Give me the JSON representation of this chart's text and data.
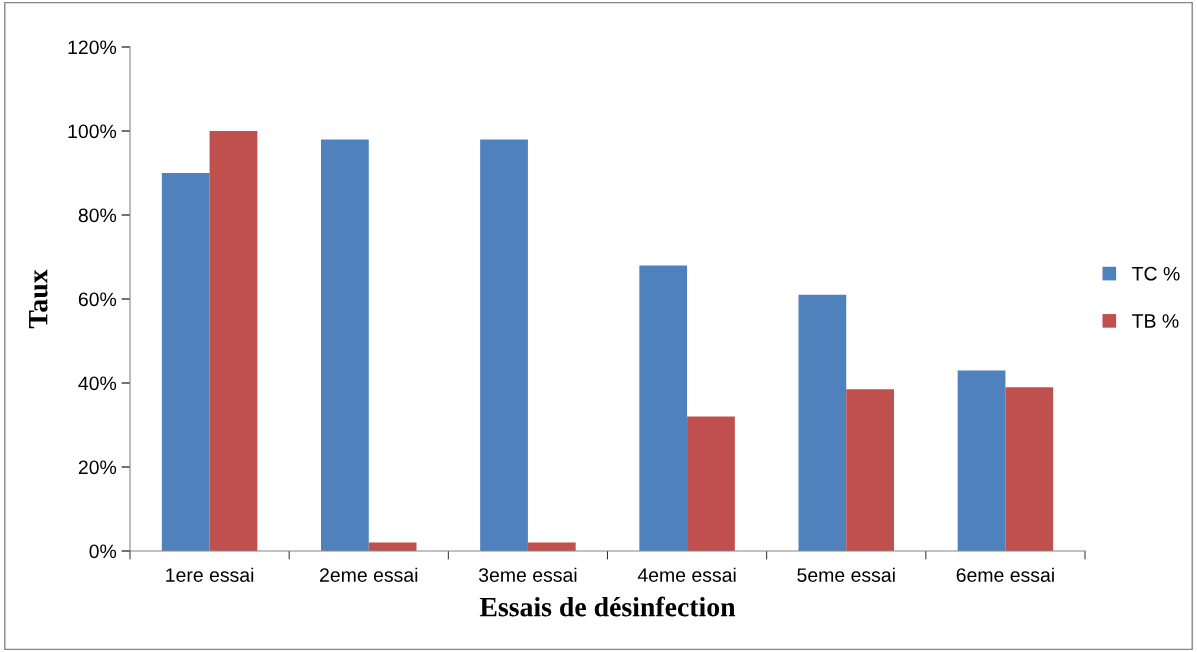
{
  "chart_data": {
    "type": "bar",
    "xlabel": "Essais de désinfection",
    "ylabel": "Taux",
    "categories": [
      "1ere essai",
      "2eme essai",
      "3eme essai",
      "4eme essai",
      "5eme essai",
      "6eme essai"
    ],
    "series": [
      {
        "name": "TC %",
        "color": "#4f81bd",
        "values": [
          90,
          98,
          98,
          68,
          61,
          43
        ]
      },
      {
        "name": "TB %",
        "color": "#c0504d",
        "values": [
          100,
          2,
          2,
          32,
          38.5,
          39
        ]
      }
    ],
    "ylim": [
      0,
      120
    ],
    "yticks": [
      {
        "value": 0,
        "label": "0%"
      },
      {
        "value": 20,
        "label": "20%"
      },
      {
        "value": 40,
        "label": "40%"
      },
      {
        "value": 60,
        "label": "60%"
      },
      {
        "value": 80,
        "label": "80%"
      },
      {
        "value": 100,
        "label": "100%"
      },
      {
        "value": 120,
        "label": "120%"
      }
    ],
    "grid": false,
    "legend": "right"
  }
}
